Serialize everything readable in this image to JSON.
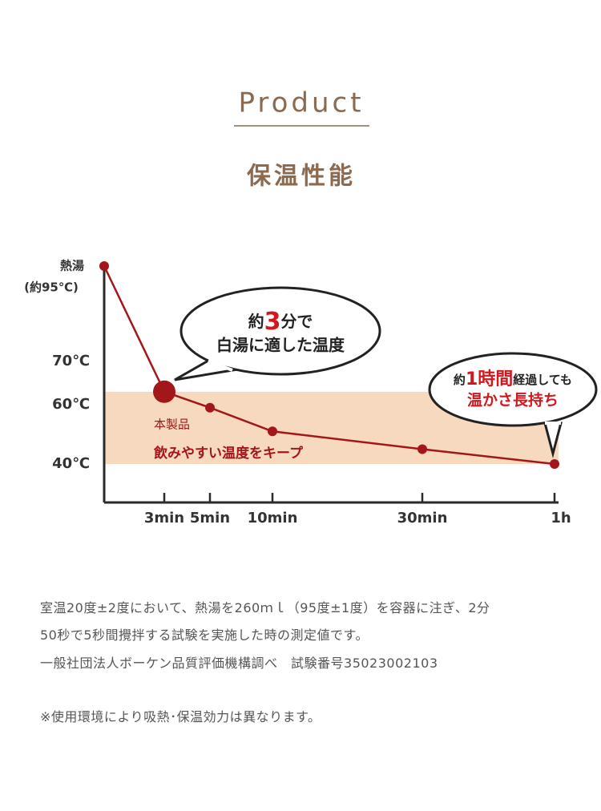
{
  "header": {
    "title": "Product",
    "subtitle": "保温性能"
  },
  "chart_data": {
    "type": "line",
    "categories": [
      null,
      "3min",
      "5min",
      "10min",
      "30min",
      "1h"
    ],
    "values": [
      95,
      63,
      59,
      51,
      45,
      40
    ],
    "color": "#a3161a",
    "yticks": [
      {
        "value": 95,
        "label": [
          "熱湯",
          "(約95℃)"
        ]
      },
      {
        "value": 70,
        "label": "70℃"
      },
      {
        "value": 60,
        "label": "60℃"
      },
      {
        "value": 40,
        "label": "40℃"
      }
    ],
    "band": [
      40,
      63
    ],
    "band_color": "#f7d9c0",
    "band_labels": [
      "本製品",
      "飲みやすい温度をキープ"
    ],
    "callouts": [
      {
        "line1": [
          "約",
          "3",
          "分で"
        ],
        "line2": "白湯に適した温度"
      },
      {
        "line1": [
          "約",
          "1時間",
          "経過しても"
        ],
        "line2": "温かさ長持ち"
      }
    ]
  },
  "notes": [
    [
      "室温20度±2度において、熱湯を260ｍｌ（95度±1度）を容器に注ぎ、2分",
      "50秒で5秒間攪拌する試験を実施した時の測定値です。",
      "一般社団法人ボーケン品質評価機構調べ　試験番号35023002103"
    ],
    [
      "※使用環境により吸熱･保温効力は異なります。"
    ]
  ]
}
